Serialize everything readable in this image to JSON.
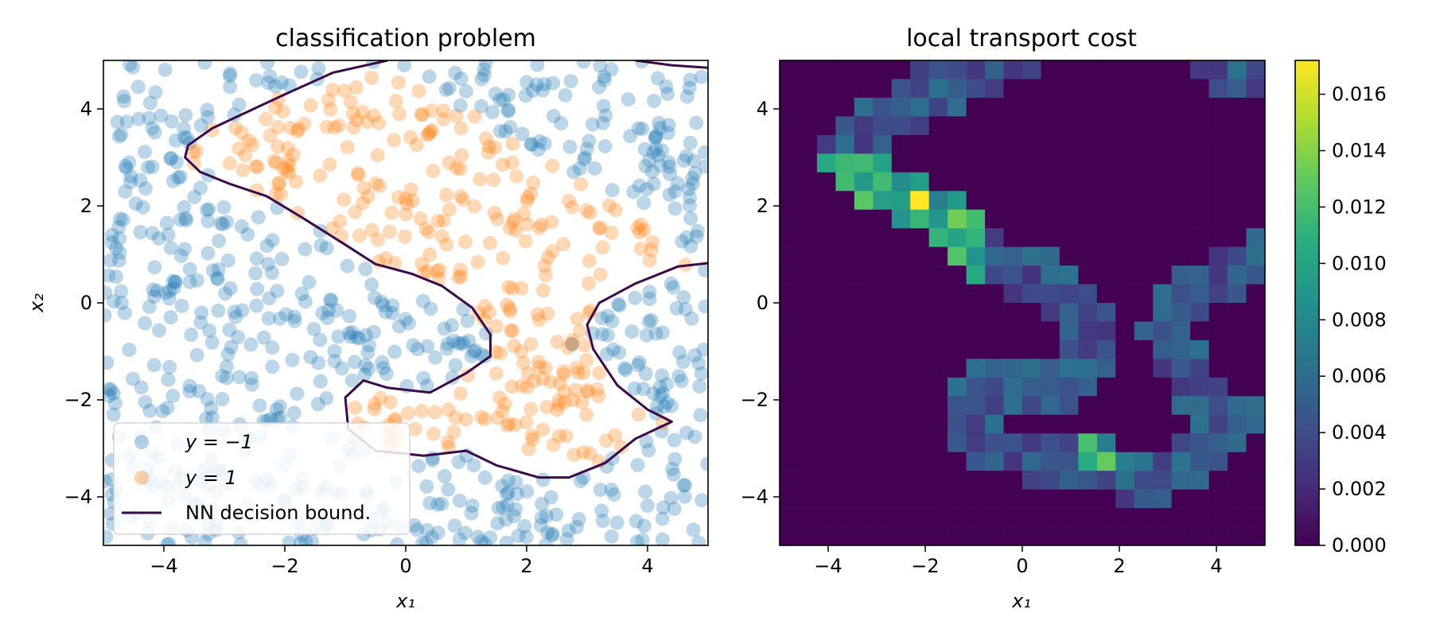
{
  "chart_data": [
    {
      "type": "scatter",
      "title": "classification problem",
      "xlabel": "x₁",
      "ylabel": "x₂",
      "xlim": [
        -5,
        5
      ],
      "ylim": [
        -5,
        5
      ],
      "xticks": [
        "−4",
        "−2",
        "0",
        "2",
        "4"
      ],
      "yticks": [
        "−4",
        "−2",
        "0",
        "2",
        "4"
      ],
      "grid": false,
      "legend_position": "lower-left",
      "series": [
        {
          "name": "y = −1",
          "color": "#1f77b4",
          "point_count": 500,
          "region": "outside decision boundary (left and bottom-right)"
        },
        {
          "name": "y = 1",
          "color": "#ff7f0e",
          "point_count": 500,
          "region": "inside decision boundary (top-center/right)"
        },
        {
          "name": "NN decision bound.",
          "color": "#3b0a4a",
          "type": "line"
        }
      ],
      "decision_boundary": [
        [
          [
            -0.3,
            5.0
          ],
          [
            -1.2,
            4.75
          ],
          [
            -2.0,
            4.3
          ],
          [
            -2.6,
            3.95
          ],
          [
            -3.2,
            3.6
          ],
          [
            -3.6,
            3.25
          ],
          [
            -3.65,
            3.0
          ],
          [
            -3.4,
            2.7
          ],
          [
            -2.9,
            2.45
          ],
          [
            -2.3,
            2.2
          ],
          [
            -1.7,
            1.75
          ],
          [
            -1.0,
            1.2
          ],
          [
            -0.5,
            0.8
          ],
          [
            0.1,
            0.6
          ],
          [
            0.6,
            0.35
          ],
          [
            1.1,
            -0.1
          ],
          [
            1.4,
            -0.65
          ],
          [
            1.4,
            -1.1
          ],
          [
            1.0,
            -1.45
          ],
          [
            0.4,
            -1.85
          ],
          [
            -0.3,
            -1.75
          ],
          [
            -0.7,
            -1.6
          ],
          [
            -1.0,
            -1.95
          ],
          [
            -0.95,
            -2.6
          ],
          [
            -0.5,
            -3.05
          ],
          [
            0.3,
            -3.15
          ],
          [
            1.0,
            -3.05
          ],
          [
            1.5,
            -3.35
          ],
          [
            2.2,
            -3.6
          ],
          [
            2.7,
            -3.6
          ],
          [
            3.3,
            -3.3
          ],
          [
            3.8,
            -2.8
          ],
          [
            4.4,
            -2.45
          ],
          [
            4.0,
            -2.2
          ],
          [
            3.5,
            -1.7
          ],
          [
            3.1,
            -0.95
          ],
          [
            3.0,
            -0.45
          ],
          [
            3.2,
            0.0
          ],
          [
            3.8,
            0.4
          ],
          [
            4.5,
            0.75
          ],
          [
            5.0,
            0.82
          ]
        ],
        [
          [
            3.8,
            5.0
          ],
          [
            4.4,
            4.9
          ],
          [
            5.0,
            4.85
          ]
        ]
      ],
      "highlighted_point": {
        "x": 2.75,
        "y": -0.85,
        "color": "#c9a07e"
      }
    },
    {
      "type": "heatmap",
      "title": "local transport cost",
      "xlabel": "x₁",
      "xlim": [
        -5,
        5
      ],
      "ylim": [
        -5,
        5
      ],
      "grid_size": [
        26,
        26
      ],
      "colormap": "viridis",
      "colorbar": {
        "min": 0.0,
        "max": 0.0172,
        "ticks": [
          "0.000",
          "0.002",
          "0.004",
          "0.006",
          "0.008",
          "0.010",
          "0.012",
          "0.014",
          "0.016"
        ]
      },
      "xticks": [
        "−4",
        "−2",
        "0",
        "2",
        "4"
      ],
      "yticks": [
        "−4",
        "−2",
        "0",
        "2",
        "4"
      ],
      "nonzero_band_along": "decision boundary of the left panel",
      "peak": {
        "x": -2.2,
        "y": 2.2,
        "value": 0.0172
      }
    }
  ]
}
